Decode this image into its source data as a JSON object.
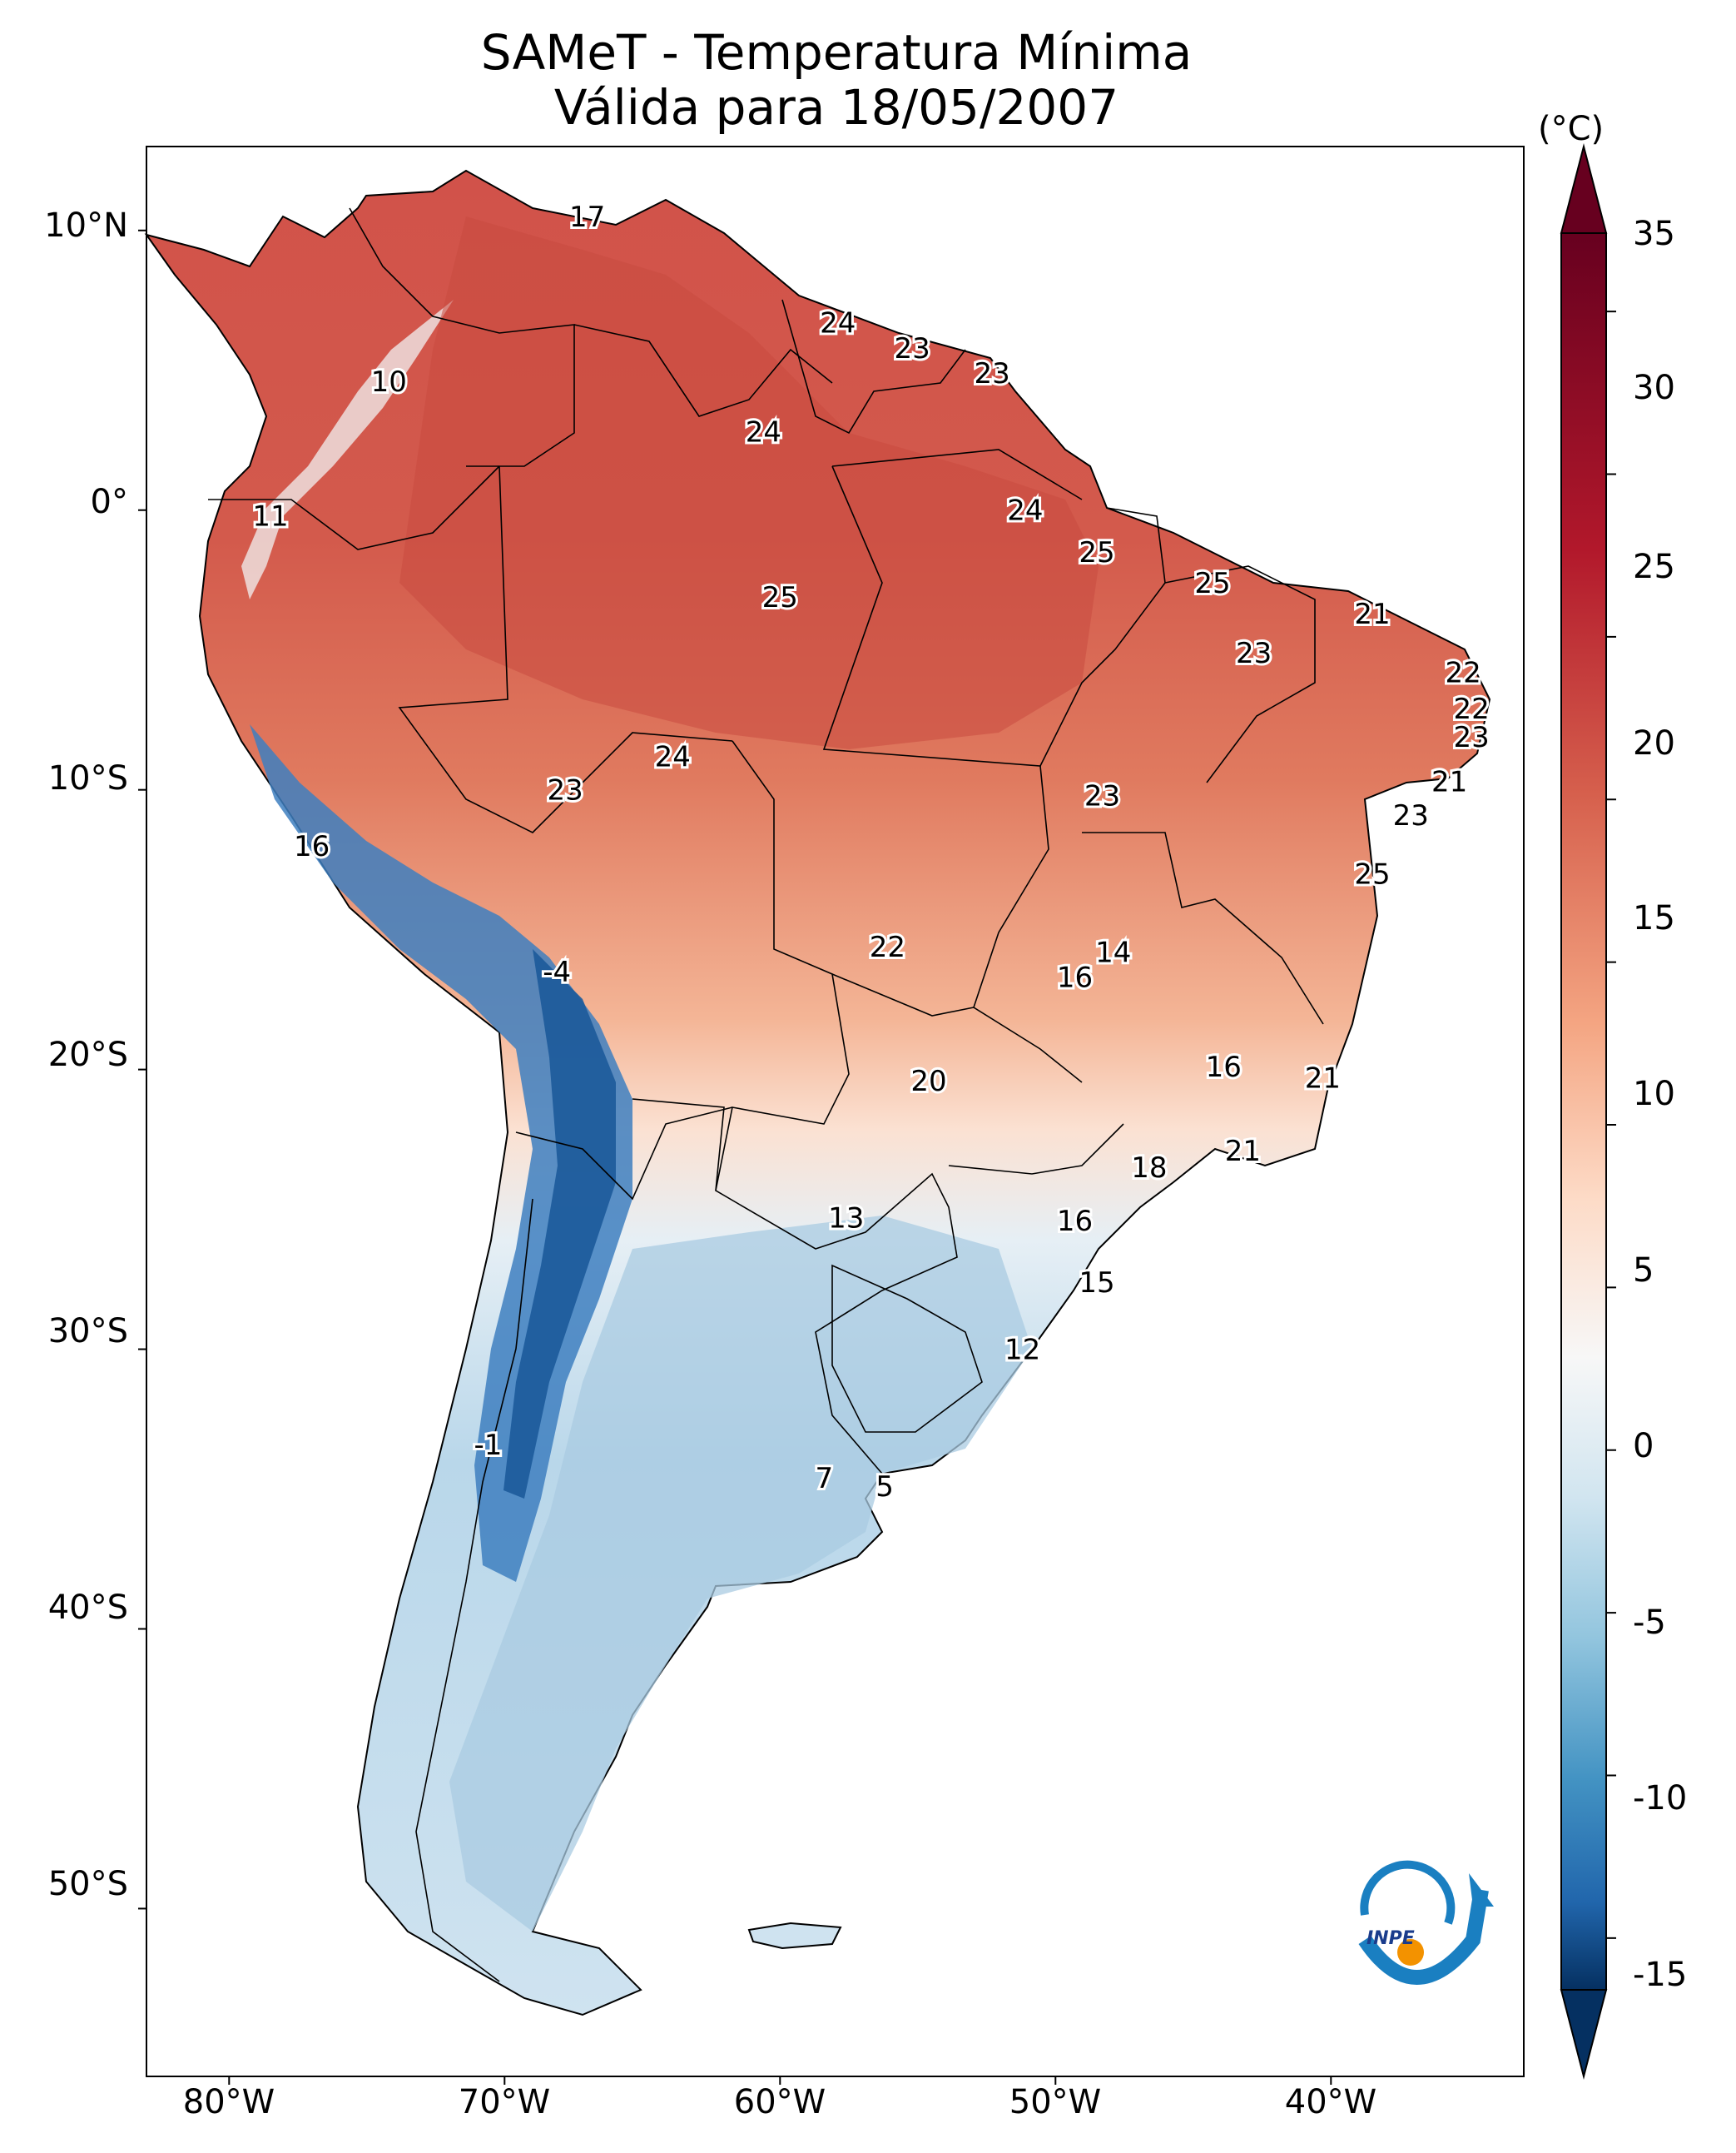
{
  "title": {
    "line1": "SAMeT - Temperatura Mínima",
    "line2": "Válida para 18/05/2007"
  },
  "axes": {
    "lat_labels": [
      "10°N",
      "0°",
      "10°S",
      "20°S",
      "30°S",
      "40°S",
      "50°S"
    ],
    "lon_labels": [
      "80°W",
      "70°W",
      "60°W",
      "50°W",
      "40°W"
    ]
  },
  "colorbar": {
    "unit": "(°C)",
    "ticks": [
      "35",
      "30",
      "25",
      "20",
      "15",
      "10",
      "5",
      "0",
      "-5",
      "-10",
      "-15"
    ],
    "min": -17,
    "max": 37,
    "extend": "both",
    "colormap": "RdBu_r",
    "colors": {
      "dark_red": "#67001f",
      "red": "#c0383a",
      "salmon": "#f4a582",
      "white": "#f7f7f7",
      "light_blue": "#92c5de",
      "blue": "#2166ac",
      "dark_blue": "#053061"
    }
  },
  "map": {
    "region": "South America",
    "lon_range": [
      -83,
      -33
    ],
    "lat_range": [
      -56,
      13
    ]
  },
  "city_values": [
    {
      "value": "17",
      "lon": -67.0,
      "lat": 10.5
    },
    {
      "value": "10",
      "lon": -74.2,
      "lat": 4.6
    },
    {
      "value": "11",
      "lon": -78.5,
      "lat": -0.2
    },
    {
      "value": "24",
      "lon": -57.9,
      "lat": 6.7
    },
    {
      "value": "23",
      "lon": -55.2,
      "lat": 5.8
    },
    {
      "value": "23",
      "lon": -52.3,
      "lat": 4.9
    },
    {
      "value": "24",
      "lon": -60.6,
      "lat": 2.8
    },
    {
      "value": "24",
      "lon": -51.1,
      "lat": 0.0
    },
    {
      "value": "25",
      "lon": -48.5,
      "lat": -1.5
    },
    {
      "value": "25",
      "lon": -60.0,
      "lat": -3.1
    },
    {
      "value": "25",
      "lon": -44.3,
      "lat": -2.6
    },
    {
      "value": "21",
      "lon": -38.5,
      "lat": -3.7
    },
    {
      "value": "23",
      "lon": -42.8,
      "lat": -5.1
    },
    {
      "value": "22",
      "lon": -35.2,
      "lat": -5.8
    },
    {
      "value": "22",
      "lon": -34.9,
      "lat": -7.1
    },
    {
      "value": "23",
      "lon": -34.9,
      "lat": -8.1
    },
    {
      "value": "21",
      "lon": -35.7,
      "lat": -9.7
    },
    {
      "value": "23",
      "lon": -37.1,
      "lat": -10.9
    },
    {
      "value": "25",
      "lon": -38.5,
      "lat": -13.0
    },
    {
      "value": "24",
      "lon": -63.9,
      "lat": -8.8
    },
    {
      "value": "23",
      "lon": -67.8,
      "lat": -10.0
    },
    {
      "value": "23",
      "lon": -48.3,
      "lat": -10.2
    },
    {
      "value": "16",
      "lon": -77.0,
      "lat": -12.0
    },
    {
      "value": "22",
      "lon": -56.1,
      "lat": -15.6
    },
    {
      "value": "14",
      "lon": -47.9,
      "lat": -15.8
    },
    {
      "value": "16",
      "lon": -49.3,
      "lat": -16.7
    },
    {
      "value": "-4",
      "lon": -68.1,
      "lat": -16.5
    },
    {
      "value": "16",
      "lon": -43.9,
      "lat": -19.9
    },
    {
      "value": "21",
      "lon": -40.3,
      "lat": -20.3
    },
    {
      "value": "20",
      "lon": -54.6,
      "lat": -20.4
    },
    {
      "value": "18",
      "lon": -46.6,
      "lat": -23.5
    },
    {
      "value": "21",
      "lon": -43.2,
      "lat": -22.9
    },
    {
      "value": "13",
      "lon": -57.6,
      "lat": -25.3
    },
    {
      "value": "16",
      "lon": -49.3,
      "lat": -25.4
    },
    {
      "value": "15",
      "lon": -48.5,
      "lat": -27.6
    },
    {
      "value": "12",
      "lon": -51.2,
      "lat": -30.0
    },
    {
      "value": "-1",
      "lon": -70.6,
      "lat": -33.4
    },
    {
      "value": "7",
      "lon": -58.4,
      "lat": -34.6
    },
    {
      "value": "5",
      "lon": -56.2,
      "lat": -34.9
    }
  ]
}
